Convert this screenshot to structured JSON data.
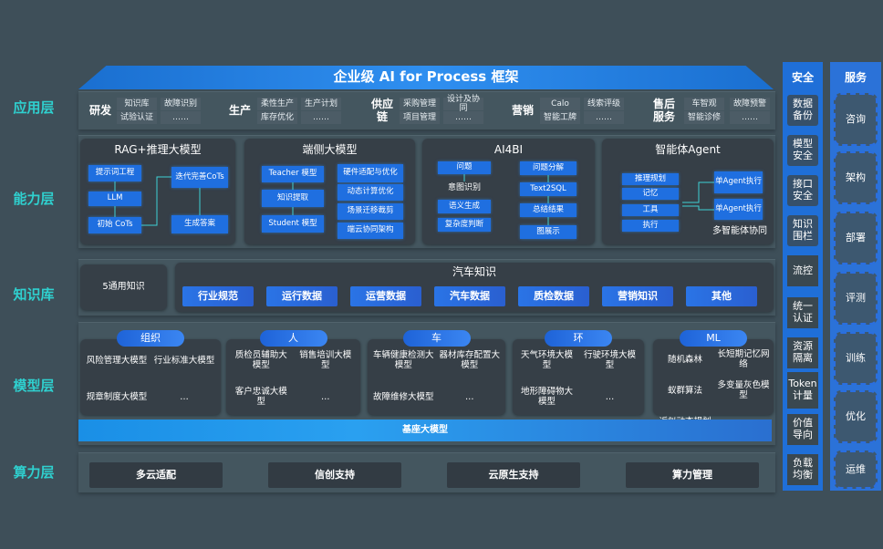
{
  "title": "企业级 AI for Process 框架",
  "layers": {
    "app": "应用层",
    "capability": "能力层",
    "knowledge": "知识库",
    "model": "模型层",
    "compute": "算力层"
  },
  "app_layer": {
    "groups": [
      {
        "name": "研发",
        "items": [
          "知识库",
          "故障识别",
          "试验认证",
          "……"
        ]
      },
      {
        "name": "生产",
        "items": [
          "柔性生产",
          "生产计划",
          "库存优化",
          "……"
        ]
      },
      {
        "name": "供应链",
        "items": [
          "采购管理",
          "设计及协同",
          "项目管理",
          "……"
        ]
      },
      {
        "name": "营销",
        "items": [
          "Calo",
          "线索评级",
          "智能工牌",
          "……"
        ]
      },
      {
        "name": "售后服务",
        "items": [
          "车智观",
          "故障预警",
          "智能诊修",
          "……"
        ]
      }
    ]
  },
  "capability": {
    "rag": {
      "title": "RAG+推理大模型",
      "items": [
        "提示词工程",
        "LLM",
        "初始 CoTs",
        "迭代完善CoTs",
        "生成答案"
      ]
    },
    "edge": {
      "title": "端侧大模型",
      "items": [
        "Teacher 模型",
        "知识提取",
        "Student 模型",
        "硬件适配与优化",
        "动态计算优化",
        "场景迁移裁剪",
        "端云协同架构"
      ]
    },
    "ai4bi": {
      "title": "AI4BI",
      "items": [
        "问题",
        "意图识别",
        "语义生成",
        "复杂度判断",
        "问题分解",
        "Text2SQL",
        "总结结果",
        "图展示"
      ]
    },
    "agent": {
      "title": "智能体Agent",
      "items": [
        "推理规划",
        "记忆",
        "工具",
        "执行",
        "单Agent执行",
        "单Agent执行",
        "多智能体协同"
      ]
    }
  },
  "knowledge": {
    "general": "5通用知识",
    "auto_title": "汽车知识",
    "auto_items": [
      "行业规范",
      "运行数据",
      "运营数据",
      "汽车数据",
      "质检数据",
      "营销知识",
      "其他"
    ]
  },
  "model_layer": {
    "groups": [
      {
        "name": "组织",
        "items": [
          "风险管理大模型",
          "行业标准大模型",
          "规章制度大模型",
          "…"
        ]
      },
      {
        "name": "人",
        "items": [
          "质检员辅助大模型",
          "销售培训大模型",
          "客户忠诚大模型",
          "…"
        ]
      },
      {
        "name": "车",
        "items": [
          "车辆健康检测大模型",
          "器材库存配置大模型",
          "故障维修大模型",
          "…"
        ]
      },
      {
        "name": "环",
        "items": [
          "天气环境大模型",
          "行驶环境大模型",
          "地形障碍物大模型",
          "…"
        ]
      },
      {
        "name": "ML",
        "items": [
          "随机森林",
          "长短期记忆网络",
          "蚁群算法",
          "多变量灰色模型",
          "近似动态规划",
          "…"
        ]
      }
    ],
    "base": "基座大模型"
  },
  "compute": {
    "items": [
      "多云适配",
      "信创支持",
      "云原生支持",
      "算力管理"
    ]
  },
  "security": {
    "title": "安全",
    "items": [
      "数据备份",
      "模型安全",
      "接口安全",
      "知识围栏",
      "流控",
      "统一认证",
      "资源隔离",
      "Token计量",
      "价值导向",
      "负载均衡"
    ]
  },
  "service": {
    "title": "服务",
    "items": [
      "咨询",
      "架构",
      "部署",
      "评测",
      "训练",
      "优化",
      "运维"
    ]
  }
}
